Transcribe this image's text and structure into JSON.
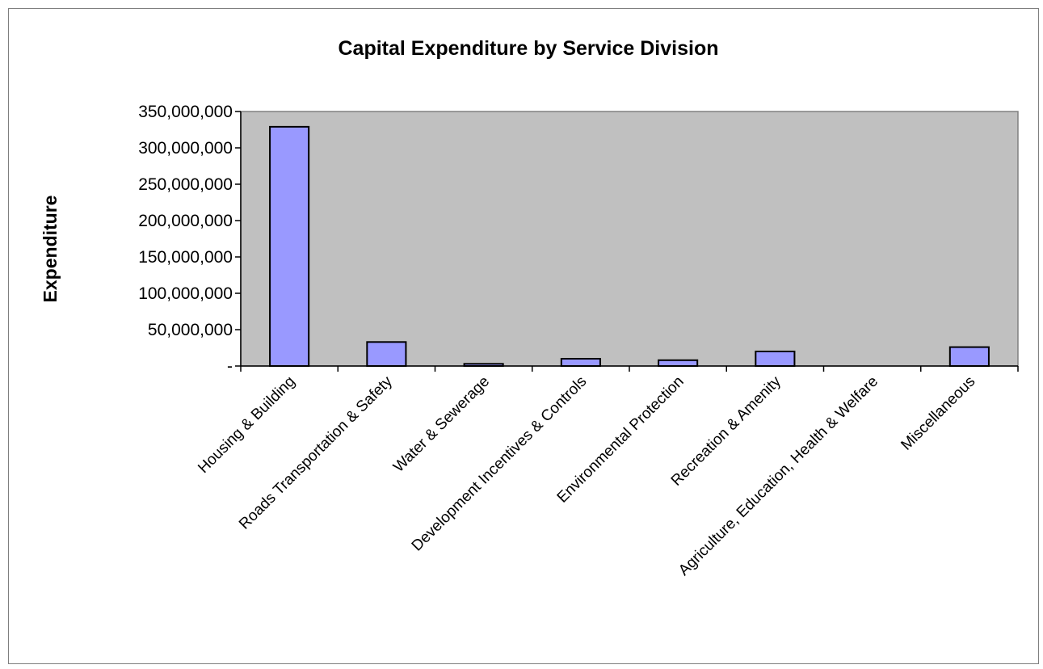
{
  "chart_data": {
    "type": "bar",
    "title": "Capital Expenditure by Service Division",
    "xlabel": "",
    "ylabel": "Expenditure",
    "ylim": [
      0,
      350000000
    ],
    "yticks": [
      0,
      50000000,
      100000000,
      150000000,
      200000000,
      250000000,
      300000000,
      350000000
    ],
    "ytick_labels": [
      "-",
      "50,000,000",
      "100,000,000",
      "150,000,000",
      "200,000,000",
      "250,000,000",
      "300,000,000",
      "350,000,000"
    ],
    "categories": [
      "Housing & Building",
      "Roads Transportation & Safety",
      "Water & Sewerage",
      "Development Incentives & Controls",
      "Environmental Protection",
      "Recreation & Amenity",
      "Agriculture, Education, Health & Welfare",
      "Miscellaneous"
    ],
    "values": [
      329000000,
      33000000,
      3000000,
      10000000,
      8000000,
      20000000,
      0,
      26000000
    ],
    "grid": false,
    "legend": "none",
    "colors": {
      "bar_fill": "#9999ff",
      "bar_stroke": "#000000",
      "plot_background": "#c0c0c0",
      "plot_border": "#808080"
    }
  }
}
